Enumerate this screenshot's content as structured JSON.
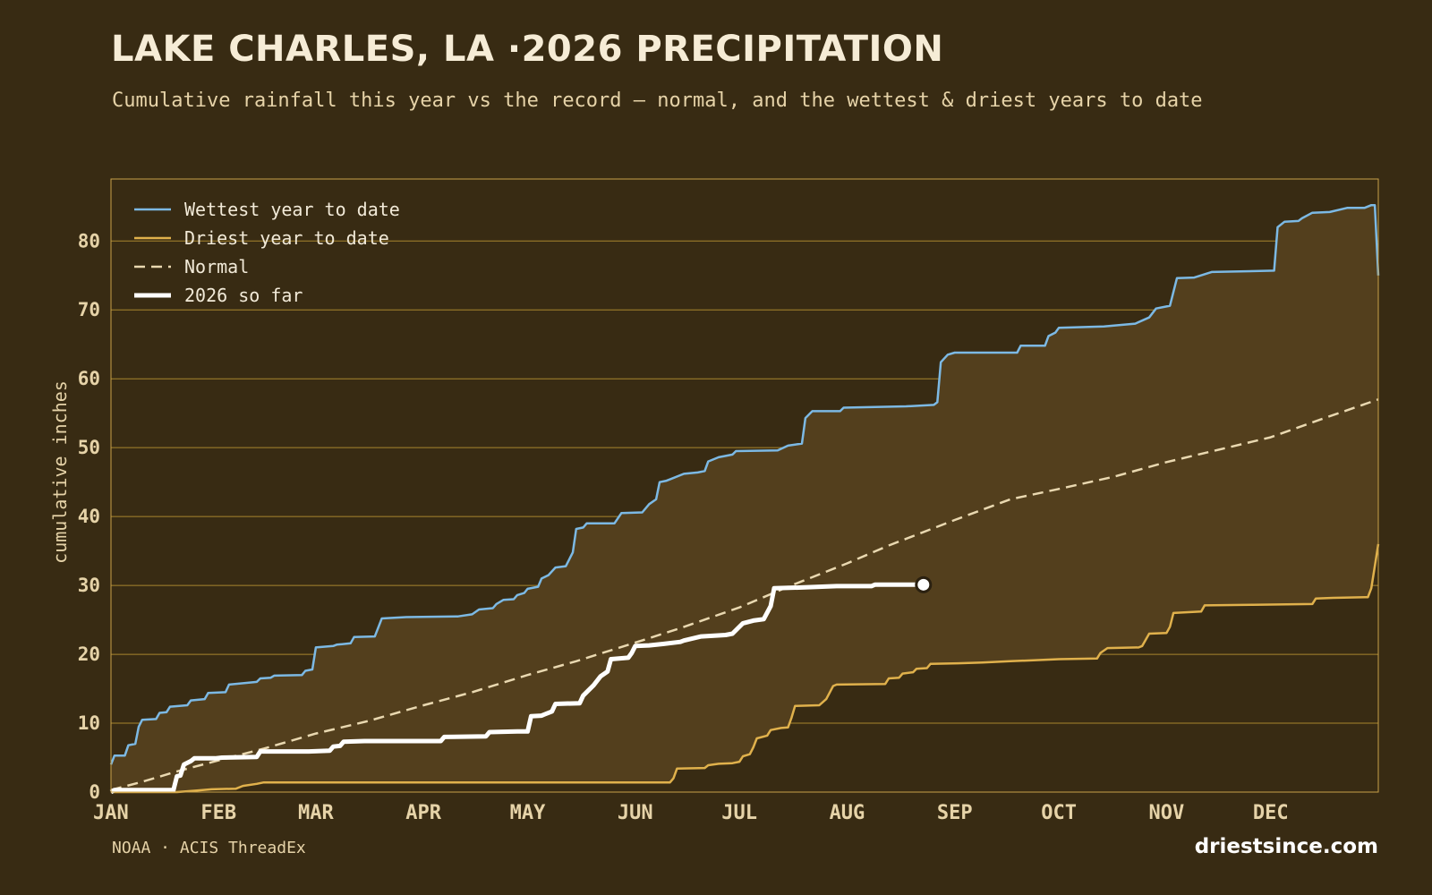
{
  "header": {
    "title": "LAKE CHARLES, LA ·2026 PRECIPITATION",
    "subtitle": "Cumulative rainfall this year vs the record — normal, and the wettest & driest years to date"
  },
  "footer": {
    "source": "NOAA · ACIS ThreadEx",
    "brand": "driestsince.com"
  },
  "colors": {
    "background": "#382b13",
    "band_fill": "#533f1d",
    "grid": "#a8862e",
    "frame": "#c9a04a",
    "wettest": "#7cb9e4",
    "driest": "#e0b14c",
    "normal": "#e9d8b0",
    "current": "#ffffff",
    "text": "#e6d3a8"
  },
  "chart_data": {
    "type": "line",
    "ylabel": "cumulative inches",
    "xlabel": "",
    "ylim": [
      0,
      89
    ],
    "yticks": [
      0,
      10,
      20,
      30,
      40,
      50,
      60,
      70,
      80
    ],
    "x_unit": "day of year",
    "xlim": [
      1,
      366
    ],
    "months": [
      {
        "label": "JAN",
        "day": 1
      },
      {
        "label": "FEB",
        "day": 32
      },
      {
        "label": "MAR",
        "day": 60
      },
      {
        "label": "APR",
        "day": 91
      },
      {
        "label": "MAY",
        "day": 121
      },
      {
        "label": "JUN",
        "day": 152
      },
      {
        "label": "JUL",
        "day": 182
      },
      {
        "label": "AUG",
        "day": 213
      },
      {
        "label": "SEP",
        "day": 244
      },
      {
        "label": "OCT",
        "day": 274
      },
      {
        "label": "NOV",
        "day": 305
      },
      {
        "label": "DEC",
        "day": 335
      }
    ],
    "grid": true,
    "legend_position": "top-left",
    "shaded_band": "between wettest and driest year to date",
    "series": [
      {
        "name": "Wettest year to date",
        "color": "#7cb9e4",
        "style": "solid",
        "points": [
          [
            1,
            4.0
          ],
          [
            2,
            5.3
          ],
          [
            5,
            5.3
          ],
          [
            6,
            6.8
          ],
          [
            8,
            7.0
          ],
          [
            9,
            9.5
          ],
          [
            10,
            10.5
          ],
          [
            14,
            10.6
          ],
          [
            15,
            11.5
          ],
          [
            17,
            11.6
          ],
          [
            18,
            12.4
          ],
          [
            23,
            12.6
          ],
          [
            24,
            13.3
          ],
          [
            28,
            13.5
          ],
          [
            29,
            14.4
          ],
          [
            34,
            14.5
          ],
          [
            35,
            15.6
          ],
          [
            43,
            16.0
          ],
          [
            44,
            16.5
          ],
          [
            47,
            16.6
          ],
          [
            48,
            16.9
          ],
          [
            56,
            17.0
          ],
          [
            57,
            17.6
          ],
          [
            59,
            17.8
          ],
          [
            60,
            21.0
          ],
          [
            65,
            21.2
          ],
          [
            66,
            21.4
          ],
          [
            70,
            21.6
          ],
          [
            71,
            22.5
          ],
          [
            77,
            22.6
          ],
          [
            79,
            25.2
          ],
          [
            86,
            25.4
          ],
          [
            101,
            25.5
          ],
          [
            105,
            25.8
          ],
          [
            107,
            26.5
          ],
          [
            111,
            26.7
          ],
          [
            112,
            27.3
          ],
          [
            114,
            27.9
          ],
          [
            117,
            28.0
          ],
          [
            118,
            28.6
          ],
          [
            120,
            28.9
          ],
          [
            121,
            29.5
          ],
          [
            124,
            29.8
          ],
          [
            125,
            31.0
          ],
          [
            127,
            31.5
          ],
          [
            129,
            32.6
          ],
          [
            132,
            32.8
          ],
          [
            134,
            34.8
          ],
          [
            135,
            38.2
          ],
          [
            137,
            38.4
          ],
          [
            138,
            39.0
          ],
          [
            146,
            39.0
          ],
          [
            148,
            40.5
          ],
          [
            154,
            40.6
          ],
          [
            156,
            41.8
          ],
          [
            158,
            42.5
          ],
          [
            159,
            45.0
          ],
          [
            161,
            45.2
          ],
          [
            162,
            45.4
          ],
          [
            166,
            46.2
          ],
          [
            170,
            46.4
          ],
          [
            172,
            46.6
          ],
          [
            173,
            48.0
          ],
          [
            176,
            48.6
          ],
          [
            178,
            48.8
          ],
          [
            180,
            49.0
          ],
          [
            181,
            49.5
          ],
          [
            193,
            49.6
          ],
          [
            196,
            50.3
          ],
          [
            200,
            50.6
          ],
          [
            201,
            54.3
          ],
          [
            203,
            55.3
          ],
          [
            211,
            55.3
          ],
          [
            212,
            55.8
          ],
          [
            230,
            56.0
          ],
          [
            238,
            56.2
          ],
          [
            239,
            56.6
          ],
          [
            240,
            62.4
          ],
          [
            242,
            63.5
          ],
          [
            244,
            63.8
          ],
          [
            262,
            63.8
          ],
          [
            263,
            64.8
          ],
          [
            270,
            64.8
          ],
          [
            271,
            66.2
          ],
          [
            273,
            66.7
          ],
          [
            274,
            67.4
          ],
          [
            287,
            67.6
          ],
          [
            296,
            68.0
          ],
          [
            300,
            68.9
          ],
          [
            302,
            70.2
          ],
          [
            306,
            70.6
          ],
          [
            308,
            74.6
          ],
          [
            313,
            74.7
          ],
          [
            318,
            75.5
          ],
          [
            336,
            75.7
          ],
          [
            337,
            82.0
          ],
          [
            339,
            82.8
          ],
          [
            343,
            82.9
          ],
          [
            344,
            83.3
          ],
          [
            347,
            84.1
          ],
          [
            352,
            84.2
          ],
          [
            357,
            84.8
          ],
          [
            362,
            84.8
          ],
          [
            364,
            85.2
          ],
          [
            365,
            85.2
          ],
          [
            366,
            75.0
          ]
        ]
      },
      {
        "name": "Driest year to date",
        "color": "#e0b14c",
        "style": "solid",
        "points": [
          [
            1,
            0.0
          ],
          [
            20,
            0.0
          ],
          [
            25,
            0.2
          ],
          [
            30,
            0.4
          ],
          [
            37,
            0.5
          ],
          [
            39,
            0.9
          ],
          [
            43,
            1.2
          ],
          [
            45,
            1.4
          ],
          [
            60,
            1.4
          ],
          [
            162,
            1.4
          ],
          [
            163,
            2.0
          ],
          [
            164,
            3.4
          ],
          [
            172,
            3.5
          ],
          [
            173,
            3.9
          ],
          [
            176,
            4.1
          ],
          [
            180,
            4.2
          ],
          [
            182,
            4.4
          ],
          [
            183,
            5.2
          ],
          [
            185,
            5.5
          ],
          [
            186,
            6.5
          ],
          [
            187,
            7.8
          ],
          [
            190,
            8.2
          ],
          [
            191,
            9.0
          ],
          [
            194,
            9.3
          ],
          [
            196,
            9.4
          ],
          [
            197,
            10.8
          ],
          [
            198,
            12.5
          ],
          [
            205,
            12.6
          ],
          [
            207,
            13.5
          ],
          [
            209,
            15.4
          ],
          [
            210,
            15.6
          ],
          [
            224,
            15.7
          ],
          [
            225,
            16.5
          ],
          [
            228,
            16.6
          ],
          [
            229,
            17.2
          ],
          [
            232,
            17.4
          ],
          [
            233,
            17.9
          ],
          [
            236,
            18.0
          ],
          [
            237,
            18.6
          ],
          [
            245,
            18.7
          ],
          [
            252,
            18.8
          ],
          [
            260,
            19.0
          ],
          [
            274,
            19.3
          ],
          [
            285,
            19.4
          ],
          [
            286,
            20.2
          ],
          [
            288,
            20.9
          ],
          [
            297,
            21.0
          ],
          [
            298,
            21.2
          ],
          [
            300,
            23.0
          ],
          [
            305,
            23.1
          ],
          [
            306,
            24.0
          ],
          [
            307,
            26.0
          ],
          [
            315,
            26.2
          ],
          [
            316,
            27.1
          ],
          [
            330,
            27.2
          ],
          [
            347,
            27.3
          ],
          [
            348,
            28.1
          ],
          [
            353,
            28.2
          ],
          [
            363,
            28.3
          ],
          [
            364,
            29.6
          ],
          [
            366,
            36.0
          ]
        ]
      },
      {
        "name": "Normal",
        "color": "#e9d8b0",
        "style": "dashed",
        "points": [
          [
            1,
            0.3
          ],
          [
            10,
            1.5
          ],
          [
            20,
            3.0
          ],
          [
            32,
            4.6
          ],
          [
            45,
            6.3
          ],
          [
            60,
            8.5
          ],
          [
            75,
            10.3
          ],
          [
            91,
            12.6
          ],
          [
            105,
            14.5
          ],
          [
            121,
            17.0
          ],
          [
            135,
            19.0
          ],
          [
            152,
            21.7
          ],
          [
            165,
            23.8
          ],
          [
            182,
            26.8
          ],
          [
            196,
            29.8
          ],
          [
            213,
            33.2
          ],
          [
            225,
            35.8
          ],
          [
            244,
            39.5
          ],
          [
            260,
            42.5
          ],
          [
            274,
            44.0
          ],
          [
            290,
            45.8
          ],
          [
            305,
            47.9
          ],
          [
            320,
            49.7
          ],
          [
            335,
            51.5
          ],
          [
            350,
            54.2
          ],
          [
            366,
            57.0
          ]
        ]
      },
      {
        "name": "2026 so far",
        "color": "#ffffff",
        "style": "bold",
        "points": [
          [
            1,
            0.0
          ],
          [
            2,
            0.3
          ],
          [
            19,
            0.3
          ],
          [
            20,
            2.3
          ],
          [
            21,
            2.4
          ],
          [
            22,
            4.0
          ],
          [
            24,
            4.5
          ],
          [
            25,
            4.9
          ],
          [
            31,
            4.9
          ],
          [
            33,
            5.0
          ],
          [
            43,
            5.1
          ],
          [
            44,
            5.9
          ],
          [
            58,
            5.9
          ],
          [
            64,
            6.0
          ],
          [
            65,
            6.6
          ],
          [
            67,
            6.7
          ],
          [
            68,
            7.3
          ],
          [
            74,
            7.4
          ],
          [
            96,
            7.4
          ],
          [
            97,
            8.0
          ],
          [
            109,
            8.1
          ],
          [
            110,
            8.7
          ],
          [
            118,
            8.8
          ],
          [
            121,
            8.8
          ],
          [
            122,
            11.0
          ],
          [
            125,
            11.1
          ],
          [
            126,
            11.3
          ],
          [
            128,
            11.7
          ],
          [
            129,
            12.8
          ],
          [
            136,
            12.9
          ],
          [
            137,
            14.0
          ],
          [
            140,
            15.5
          ],
          [
            142,
            16.8
          ],
          [
            144,
            17.5
          ],
          [
            145,
            19.3
          ],
          [
            150,
            19.5
          ],
          [
            151,
            20.2
          ],
          [
            152,
            21.2
          ],
          [
            156,
            21.3
          ],
          [
            160,
            21.5
          ],
          [
            165,
            21.8
          ],
          [
            166,
            22.0
          ],
          [
            171,
            22.6
          ],
          [
            178,
            22.8
          ],
          [
            180,
            23.0
          ],
          [
            183,
            24.5
          ],
          [
            186,
            24.9
          ],
          [
            189,
            25.1
          ],
          [
            191,
            27.0
          ],
          [
            192,
            29.6
          ],
          [
            200,
            29.7
          ],
          [
            210,
            29.9
          ],
          [
            220,
            29.9
          ],
          [
            221,
            30.1
          ],
          [
            235,
            30.1
          ]
        ]
      }
    ],
    "current_marker": {
      "day": 235,
      "value": 30.1
    }
  }
}
